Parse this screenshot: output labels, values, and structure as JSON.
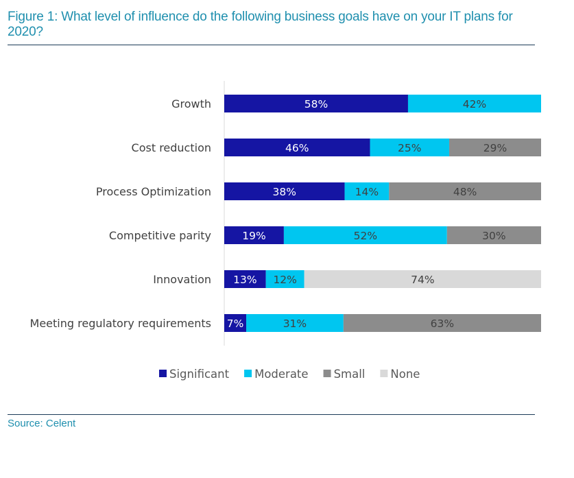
{
  "title": "Figure 1: What level of influence do the following business goals have on your IT plans for 2020?",
  "source": "Source: Celent",
  "chart_data": {
    "type": "bar",
    "orientation": "horizontal",
    "stacked": true,
    "categories": [
      "Growth",
      "Cost reduction",
      "Process Optimization",
      "Competitive parity",
      "Innovation",
      "Meeting regulatory requirements"
    ],
    "series": [
      {
        "name": "Significant",
        "color": "#1515a3",
        "label_color": "#ffffff",
        "values": [
          58,
          46,
          38,
          19,
          13,
          7
        ]
      },
      {
        "name": "Moderate",
        "color": "#00c6f0",
        "label_color": "#404040",
        "values": [
          42,
          25,
          14,
          52,
          12,
          31
        ]
      },
      {
        "name": "Small",
        "color": "#8c8c8c",
        "label_color": "#404040",
        "values": [
          null,
          29,
          48,
          30,
          null,
          63
        ]
      },
      {
        "name": "None",
        "color": "#d9d9d9",
        "label_color": "#404040",
        "values": [
          null,
          null,
          null,
          null,
          74,
          null
        ]
      }
    ],
    "unit": "%",
    "legend": "bottom",
    "grid": false
  }
}
